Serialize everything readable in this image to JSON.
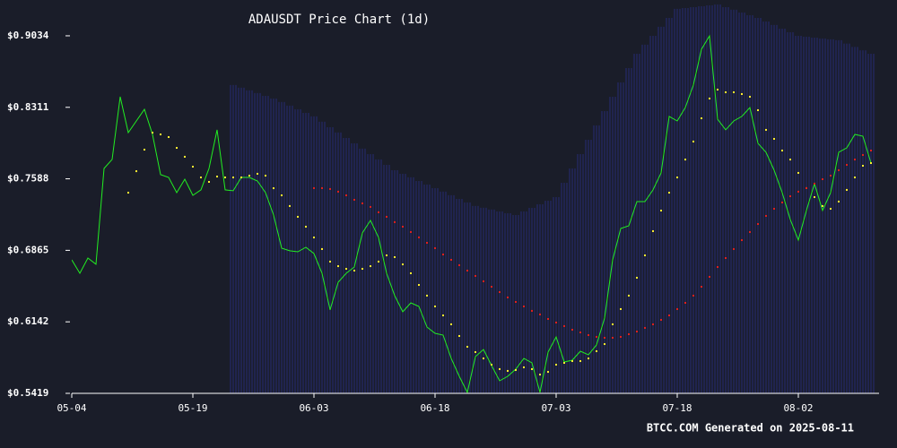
{
  "chart_data": {
    "type": "line",
    "title": "ADAUSDT Price Chart (1d)",
    "footer": "BTCC.COM Generated on 2025-08-11",
    "x": [
      0,
      1,
      2,
      3,
      4,
      5,
      6,
      7,
      8,
      9,
      10,
      11,
      12,
      13,
      14,
      15,
      16,
      17,
      18,
      19,
      20,
      21,
      22,
      23,
      24,
      25,
      26,
      27,
      28,
      29,
      30,
      31,
      32,
      33,
      34,
      35,
      36,
      37,
      38,
      39,
      40,
      41,
      42,
      43,
      44,
      45,
      46,
      47,
      48,
      49,
      50,
      51,
      52,
      53,
      54,
      55,
      56,
      57,
      58,
      59,
      60,
      61,
      62,
      63,
      64,
      65,
      66,
      67,
      68,
      69,
      70,
      71,
      72,
      73,
      74,
      75,
      76,
      77,
      78,
      79,
      80,
      81,
      82,
      83,
      84,
      85,
      86,
      87,
      88,
      89,
      90,
      91,
      92,
      93,
      94,
      95,
      96,
      97,
      98,
      99
    ],
    "xlim": [
      0,
      100
    ],
    "xticks": [
      {
        "value": 0,
        "label": "05-04"
      },
      {
        "value": 15,
        "label": "05-19"
      },
      {
        "value": 30,
        "label": "06-03"
      },
      {
        "value": 45,
        "label": "06-18"
      },
      {
        "value": 60,
        "label": "07-03"
      },
      {
        "value": 75,
        "label": "07-18"
      },
      {
        "value": 90,
        "label": "08-02"
      }
    ],
    "ylim": [
      0.5419,
      0.9396
    ],
    "yticks": [
      {
        "value": 0.5419,
        "label": "$0.5419"
      },
      {
        "value": 0.6142,
        "label": "$0.6142"
      },
      {
        "value": 0.6865,
        "label": "$0.6865"
      },
      {
        "value": 0.7588,
        "label": "$0.7588"
      },
      {
        "value": 0.8311,
        "label": "$0.8311"
      },
      {
        "value": 0.9034,
        "label": "$0.9034"
      }
    ],
    "series": [
      {
        "style": "band",
        "color": "#2b2f8f",
        "values": [
          null,
          null,
          null,
          null,
          null,
          null,
          null,
          null,
          null,
          null,
          null,
          null,
          null,
          null,
          null,
          null,
          null,
          null,
          null,
          null,
          0.8536,
          0.8509,
          0.8482,
          0.8455,
          0.8427,
          0.84,
          0.8364,
          0.8328,
          0.8291,
          0.8255,
          0.8219,
          0.8165,
          0.811,
          0.8056,
          0.8001,
          0.7947,
          0.7893,
          0.7838,
          0.7784,
          0.7729,
          0.7675,
          0.7639,
          0.7603,
          0.7566,
          0.753,
          0.7494,
          0.7458,
          0.7422,
          0.7385,
          0.7349,
          0.7313,
          0.7295,
          0.7277,
          0.7258,
          0.724,
          0.7222,
          0.7258,
          0.7294,
          0.7331,
          0.7367,
          0.7403,
          0.7548,
          0.7693,
          0.7838,
          0.7983,
          0.8128,
          0.8273,
          0.8418,
          0.8563,
          0.8708,
          0.8853,
          0.8944,
          0.9034,
          0.9125,
          0.9215,
          0.9306,
          0.9315,
          0.9324,
          0.9333,
          0.9342,
          0.9351,
          0.9324,
          0.9297,
          0.9269,
          0.9242,
          0.9215,
          0.9179,
          0.9143,
          0.9106,
          0.907,
          0.9034,
          0.9025,
          0.9016,
          0.9007,
          0.8998,
          0.8989,
          0.8955,
          0.8921,
          0.8887,
          0.8853
        ]
      },
      {
        "style": "line",
        "color": "#22ee22",
        "values": [
          0.6769,
          0.6633,
          0.6787,
          0.6724,
          0.7693,
          0.7784,
          0.8418,
          0.8055,
          0.8173,
          0.8291,
          0.8037,
          0.763,
          0.7602,
          0.7448,
          0.7584,
          0.7421,
          0.7476,
          0.7693,
          0.8083,
          0.7476,
          0.7467,
          0.7602,
          0.7602,
          0.7566,
          0.7448,
          0.7222,
          0.6887,
          0.686,
          0.685,
          0.6896,
          0.6832,
          0.6633,
          0.6262,
          0.6542,
          0.6633,
          0.6696,
          0.7041,
          0.7168,
          0.6995,
          0.6633,
          0.6407,
          0.6243,
          0.6334,
          0.6298,
          0.6089,
          0.6026,
          0.6008,
          0.5772,
          0.5591,
          0.5428,
          0.579,
          0.5863,
          0.57,
          0.5546,
          0.5591,
          0.5664,
          0.5772,
          0.5727,
          0.5428,
          0.5836,
          0.599,
          0.5736,
          0.5754,
          0.5845,
          0.5809,
          0.5908,
          0.618,
          0.6769,
          0.7086,
          0.7113,
          0.7358,
          0.7358,
          0.7476,
          0.7648,
          0.8219,
          0.8173,
          0.8309,
          0.8536,
          0.8898,
          0.9034,
          0.8191,
          0.8083,
          0.8173,
          0.8219,
          0.8309,
          0.7947,
          0.7856,
          0.7675,
          0.7448,
          0.7177,
          0.6968,
          0.7267,
          0.7539,
          0.7267,
          0.7448,
          0.7856,
          0.7901,
          0.8037,
          0.8019,
          0.7747
        ]
      },
      {
        "style": "dots",
        "color": "#ffee33",
        "values": [
          null,
          null,
          null,
          null,
          null,
          null,
          null,
          0.7448,
          0.7665,
          0.7883,
          0.8055,
          0.8037,
          0.801,
          0.7901,
          0.7811,
          0.7711,
          0.7602,
          0.7557,
          0.7611,
          0.7602,
          0.7602,
          0.7602,
          0.762,
          0.7639,
          0.762,
          0.7493,
          0.7421,
          0.7313,
          0.7204,
          0.7104,
          0.6995,
          0.6878,
          0.6751,
          0.6705,
          0.6678,
          0.666,
          0.6678,
          0.6705,
          0.6751,
          0.6814,
          0.6796,
          0.6723,
          0.6633,
          0.6515,
          0.6407,
          0.6298,
          0.6207,
          0.6117,
          0.5999,
          0.589,
          0.5836,
          0.5772,
          0.5709,
          0.5664,
          0.5646,
          0.5655,
          0.5682,
          0.5664,
          0.5609,
          0.5636,
          0.5709,
          0.5727,
          0.5745,
          0.5745,
          0.5772,
          0.5845,
          0.5917,
          0.6117,
          0.6271,
          0.6407,
          0.6588,
          0.6814,
          0.7059,
          0.7267,
          0.7448,
          0.7602,
          0.7783,
          0.7965,
          0.82,
          0.84,
          0.849,
          0.8463,
          0.8463,
          0.8445,
          0.8418,
          0.8282,
          0.8083,
          0.7992,
          0.7874,
          0.7783,
          0.7648,
          0.7494,
          0.7403,
          0.7313,
          0.7285,
          0.7358,
          0.7476,
          0.7602,
          0.772,
          0.7747
        ]
      },
      {
        "style": "dots",
        "color": "#e02020",
        "values": [
          null,
          null,
          null,
          null,
          null,
          null,
          null,
          null,
          null,
          null,
          null,
          null,
          null,
          null,
          null,
          null,
          null,
          null,
          null,
          null,
          null,
          null,
          null,
          null,
          null,
          null,
          null,
          null,
          null,
          null,
          0.7494,
          0.7494,
          0.7485,
          0.7458,
          0.7421,
          0.7376,
          0.734,
          0.7304,
          0.725,
          0.7204,
          0.715,
          0.7104,
          0.705,
          0.6996,
          0.6941,
          0.6887,
          0.6823,
          0.6769,
          0.6715,
          0.666,
          0.6606,
          0.6552,
          0.6497,
          0.6443,
          0.6389,
          0.6343,
          0.6298,
          0.6253,
          0.6217,
          0.6171,
          0.6135,
          0.6099,
          0.6062,
          0.6035,
          0.6008,
          0.599,
          0.5981,
          0.5981,
          0.599,
          0.6017,
          0.6044,
          0.6081,
          0.6117,
          0.6162,
          0.6207,
          0.6271,
          0.6334,
          0.6407,
          0.6497,
          0.6597,
          0.6696,
          0.6787,
          0.6878,
          0.6968,
          0.705,
          0.7131,
          0.7213,
          0.7285,
          0.7349,
          0.7412,
          0.7458,
          0.7494,
          0.7539,
          0.7584,
          0.762,
          0.7675,
          0.7729,
          0.7783,
          0.7829,
          0.7874
        ]
      }
    ]
  }
}
